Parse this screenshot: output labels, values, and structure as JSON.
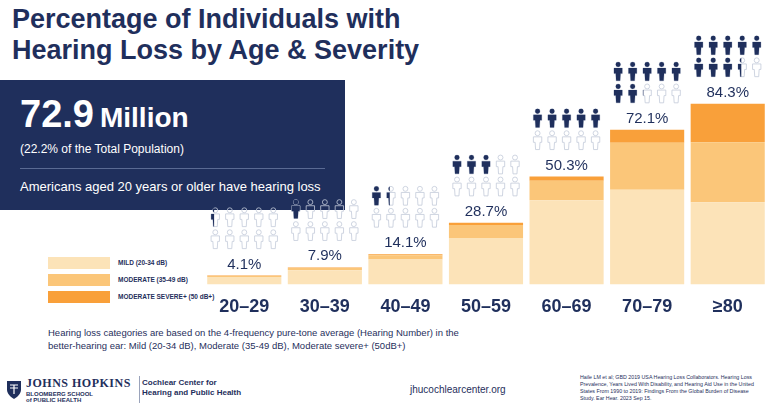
{
  "header": {
    "title": "Percentage of Individuals with Hearing Loss by Age & Severity",
    "stat_value": "72.9",
    "stat_unit": "Million",
    "stat_note": "(22.2% of the Total Population)",
    "stat_caption": "Americans aged 20 years or older have hearing loss"
  },
  "chart_data": {
    "type": "bar",
    "stacked": true,
    "categories": [
      "20–29",
      "30–39",
      "40–49",
      "50–59",
      "60–69",
      "70–79",
      "≥80"
    ],
    "series": [
      {
        "name": "MILD (20-34 dB)",
        "color": "#fce3b8",
        "values": [
          3.4,
          6.6,
          11.6,
          21.7,
          39.3,
          44.1,
          38.3
        ]
      },
      {
        "name": "MODERATE (35-49 dB)",
        "color": "#fbc679",
        "values": [
          0.5,
          1.0,
          2.0,
          6.0,
          9.0,
          22.0,
          28.0
        ]
      },
      {
        "name": "MODERATE SEVERE+ (50 dB+)",
        "color": "#f9a03a",
        "values": [
          0.2,
          0.3,
          0.5,
          1.0,
          2.0,
          6.0,
          18.0
        ]
      }
    ],
    "total_labels": [
      "4.1%",
      "7.9%",
      "14.1%",
      "28.7%",
      "50.3%",
      "72.1%",
      "84.3%"
    ],
    "ylim": [
      0,
      100
    ],
    "grid": false,
    "tick_labels": "x",
    "legend": "left"
  },
  "footnote": "Hearing loss categories are based on the 4-frequency pure-tone average (Hearing Number) in the better-hearing ear: Mild (20-34 dB), Moderate (35-49 dB), Moderate severe+ (50dB+)",
  "footer": {
    "logo": "JOHNS HOPKINS",
    "school": "BLOOMBERG SCHOOL",
    "school_sub": "of PUBLIC HEALTH",
    "center": "Cochlear Center for",
    "center_sub": "Hearing and Public Health",
    "url": "jhucochlearcenter.org",
    "citation": "Haile LM et al; GBD 2019 USA Hearing Loss Collaborators. Hearing Loss Prevalence, Years Lived With Disability, and Hearing Aid Use in the United States From 1990 to 2019: Findings From the Global Burden of Disease Study. Ear Hear. 2023 Sep 15."
  }
}
